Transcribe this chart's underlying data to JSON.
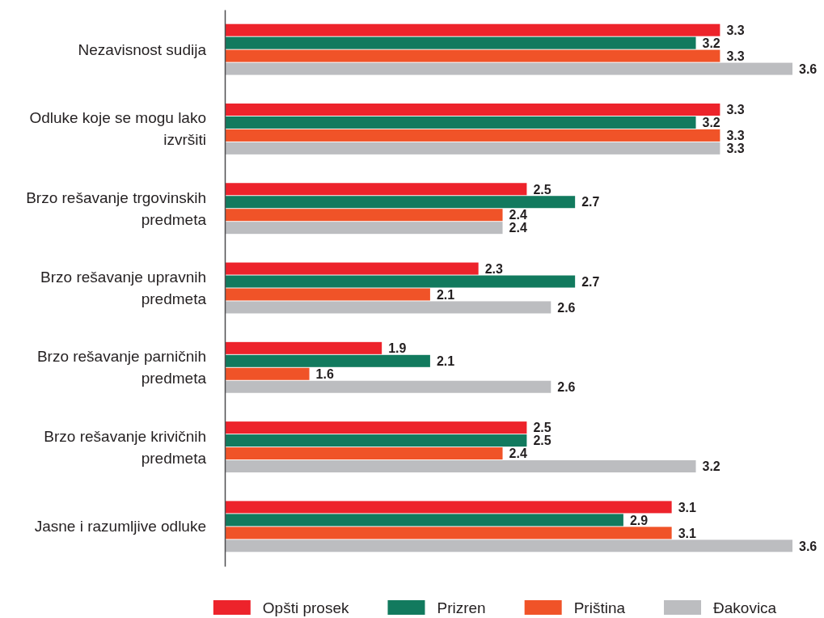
{
  "chart_data": {
    "type": "bar",
    "orientation": "horizontal",
    "categories": [
      "Nezavisnost sudija",
      "Odluke koje se mogu lako izvršiti",
      "Brzo rešavanje trgovinskih predmeta",
      "Brzo rešavanje upravnih predmeta",
      "Brzo rešavanje parničnih predmeta",
      "Brzo rešavanje krivičnih predmeta",
      "Jasne i razumljive odluke"
    ],
    "series": [
      {
        "name": "Opšti prosek",
        "color": "#ed232b",
        "values": [
          3.3,
          3.3,
          2.5,
          2.3,
          1.9,
          2.5,
          3.1
        ]
      },
      {
        "name": "Prizren",
        "color": "#127a5e",
        "values": [
          3.2,
          3.2,
          2.7,
          2.7,
          2.1,
          2.5,
          2.9
        ]
      },
      {
        "name": "Priština",
        "color": "#f05328",
        "values": [
          3.3,
          3.3,
          2.4,
          2.1,
          1.6,
          2.4,
          3.1
        ]
      },
      {
        "name": "Đakovica",
        "color": "#bcbdc0",
        "values": [
          3.6,
          3.3,
          2.4,
          2.6,
          2.6,
          3.2,
          3.6
        ]
      }
    ],
    "xlim": [
      1.25,
      3.6
    ],
    "tick_labels": "y",
    "data_labels": true,
    "legend": "bottom"
  }
}
